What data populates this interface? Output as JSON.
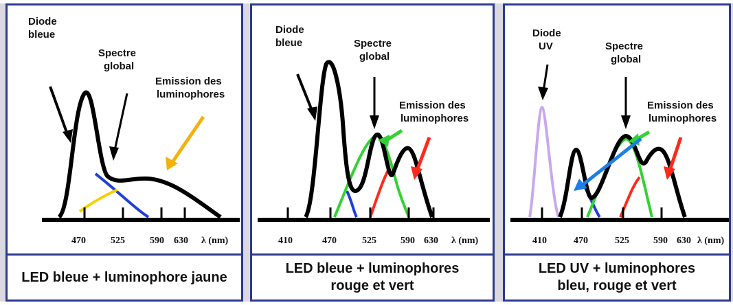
{
  "panels": [
    {
      "diode_label": [
        "Diode",
        "bleue"
      ],
      "spectre_label": [
        "Spectre",
        "global"
      ],
      "emission_label": [
        "Emission des",
        "luminophores"
      ],
      "ticks": [
        "470",
        "525",
        "590",
        "630",
        "λ (nm)"
      ],
      "caption": "LED bleue + luminophore jaune"
    },
    {
      "diode_label": [
        "Diode",
        "bleue"
      ],
      "spectre_label": [
        "Spectre",
        "global"
      ],
      "emission_label": [
        "Emission des",
        "luminophores"
      ],
      "ticks": [
        "410",
        "470",
        "525",
        "590",
        "630",
        "λ (nm)"
      ],
      "caption": "LED bleue + luminophores rouge et vert"
    },
    {
      "diode_label": [
        "Diode",
        "UV"
      ],
      "spectre_label": [
        "Spectre",
        "global"
      ],
      "emission_label": [
        "Emission des",
        "luminophores"
      ],
      "ticks": [
        "410",
        "470",
        "525",
        "590",
        "630",
        "λ (nm)"
      ],
      "caption": "LED UV + luminophores bleu, rouge et vert"
    }
  ],
  "colors": {
    "frame": "#2b3a8f",
    "spectrum": "#000000",
    "blue": "#1f3fd8",
    "yellow": "#f5d000",
    "orange": "#f2b20c",
    "green": "#33d233",
    "red": "#ff2a1a",
    "violet": "#c8a8ee",
    "arrow_blue": "#1e7de6"
  }
}
